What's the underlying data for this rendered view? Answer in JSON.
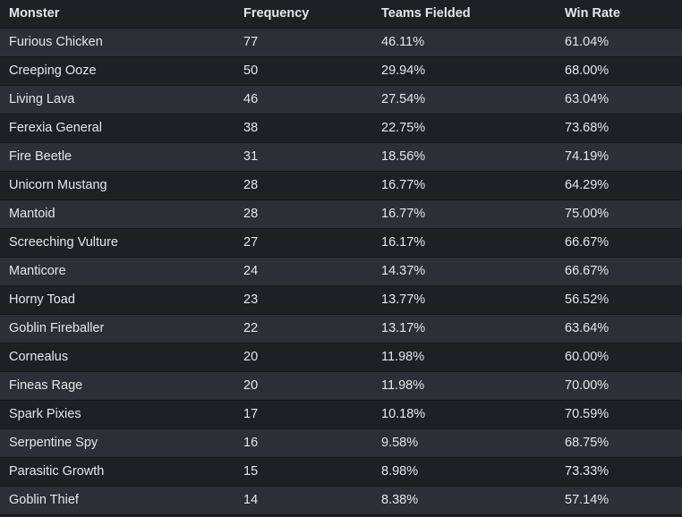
{
  "table": {
    "header": [
      "Monster",
      "Frequency",
      "Teams Fielded",
      "Win Rate"
    ],
    "rows": [
      [
        "Furious Chicken",
        "77",
        "46.11%",
        "61.04%"
      ],
      [
        "Creeping Ooze",
        "50",
        "29.94%",
        "68.00%"
      ],
      [
        "Living Lava",
        "46",
        "27.54%",
        "63.04%"
      ],
      [
        "Ferexia General",
        "38",
        "22.75%",
        "73.68%"
      ],
      [
        "Fire Beetle",
        "31",
        "18.56%",
        "74.19%"
      ],
      [
        "Unicorn Mustang",
        "28",
        "16.77%",
        "64.29%"
      ],
      [
        "Mantoid",
        "28",
        "16.77%",
        "75.00%"
      ],
      [
        "Screeching Vulture",
        "27",
        "16.17%",
        "66.67%"
      ],
      [
        "Manticore",
        "24",
        "14.37%",
        "66.67%"
      ],
      [
        "Horny Toad",
        "23",
        "13.77%",
        "56.52%"
      ],
      [
        "Goblin Fireballer",
        "22",
        "13.17%",
        "63.64%"
      ],
      [
        "Cornealus",
        "20",
        "11.98%",
        "60.00%"
      ],
      [
        "Fineas Rage",
        "20",
        "11.98%",
        "70.00%"
      ],
      [
        "Spark Pixies",
        "17",
        "10.18%",
        "70.59%"
      ],
      [
        "Serpentine Spy",
        "16",
        "9.58%",
        "68.75%"
      ],
      [
        "Parasitic Growth",
        "15",
        "8.98%",
        "73.33%"
      ],
      [
        "Goblin Thief",
        "14",
        "8.38%",
        "57.14%"
      ]
    ]
  }
}
